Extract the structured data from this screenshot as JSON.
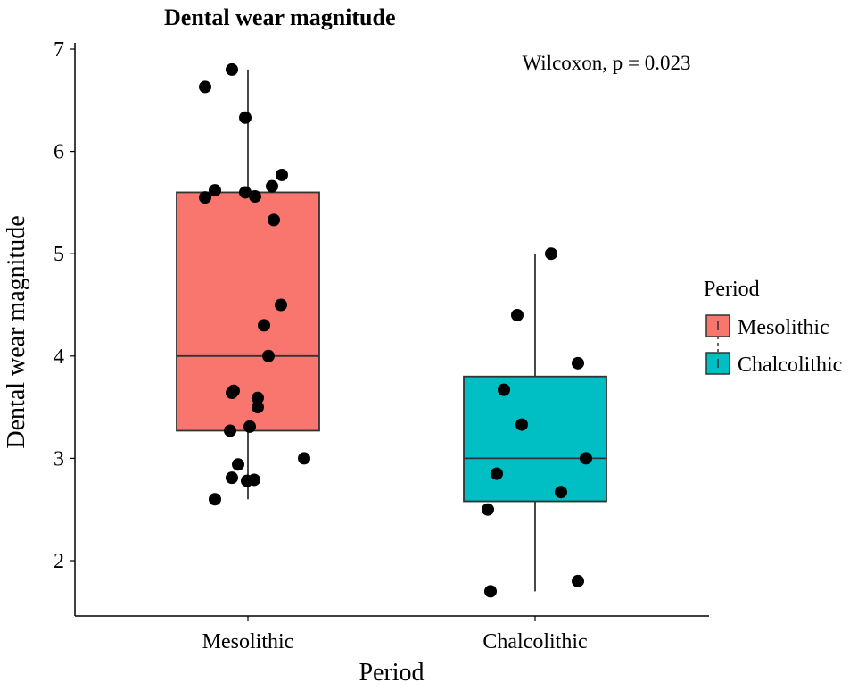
{
  "chart_data": {
    "type": "box",
    "title": "Dental wear magnitude",
    "annotation": "Wilcoxon, p = 0.023",
    "xlabel": "Period",
    "ylabel": "Dental wear magnitude",
    "ylim": [
      1.46,
      7.0
    ],
    "yticks": [
      2,
      3,
      4,
      5,
      6,
      7
    ],
    "categories": [
      "Mesolithic",
      "Chalcolithic"
    ],
    "legend": {
      "title": "Period",
      "position": "right",
      "entries": [
        {
          "label": "Mesolithic",
          "color": "#F8766D"
        },
        {
          "label": "Chalcolithic",
          "color": "#00BFC4"
        }
      ]
    },
    "grid": false,
    "boxes": [
      {
        "category": "Mesolithic",
        "color": "#F8766D",
        "whisker_low": 2.6,
        "q1": 3.27,
        "median": 4.0,
        "q3": 5.6,
        "whisker_high": 6.8
      },
      {
        "category": "Chalcolithic",
        "color": "#00BFC4",
        "whisker_low": 1.7,
        "q1": 2.58,
        "median": 3.0,
        "q3": 3.8,
        "whisker_high": 5.0
      }
    ],
    "points": [
      {
        "category": "Mesolithic",
        "values": [
          6.8,
          6.63,
          6.33,
          5.77,
          5.66,
          5.62,
          5.6,
          5.56,
          5.55,
          5.33,
          4.5,
          4.3,
          4.0,
          3.66,
          3.64,
          3.59,
          3.5,
          3.31,
          3.27,
          3.0,
          2.94,
          2.81,
          2.79,
          2.78,
          2.6
        ]
      },
      {
        "category": "Chalcolithic",
        "values": [
          5.0,
          4.4,
          3.93,
          3.67,
          3.33,
          3.0,
          2.85,
          2.67,
          2.5,
          1.8,
          1.7
        ]
      }
    ]
  }
}
